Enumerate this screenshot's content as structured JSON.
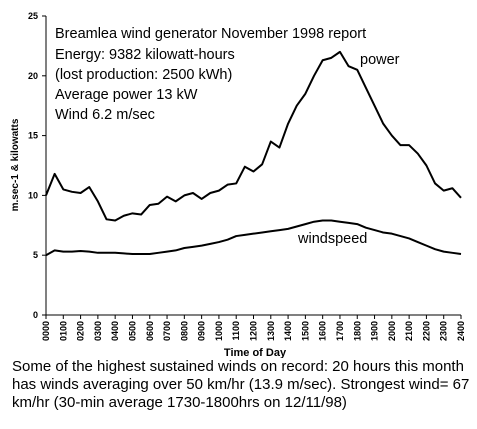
{
  "chart_data": {
    "type": "line",
    "title": "Breamlea wind generator November 1998 report",
    "annotations": [
      "Energy: 9382 kilowatt-hours",
      "(lost production: 2500 kWh)",
      "Average power 13 kW",
      "Wind 6.2 m/sec"
    ],
    "x_label": "Time of Day",
    "y_label": "m.sec-1 & kilowatts",
    "caption": "Some of the highest sustained winds on record: 20 hours this month has winds averaging over 50 km/hr (13.9 m/sec). Strongest wind= 67 km/hr (30-min average 1730-1800hrs on 12/11/98)",
    "x": [
      0,
      0.5,
      1,
      1.5,
      2,
      2.5,
      3,
      3.5,
      4,
      4.5,
      5,
      5.5,
      6,
      6.5,
      7,
      7.5,
      8,
      8.5,
      9,
      9.5,
      10,
      10.5,
      11,
      11.5,
      12,
      12.5,
      13,
      13.5,
      14,
      14.5,
      15,
      15.5,
      16,
      16.5,
      17,
      17.5,
      18,
      18.5,
      19,
      19.5,
      20,
      20.5,
      21,
      21.5,
      22,
      22.5,
      23,
      23.5,
      24
    ],
    "series": [
      {
        "name": "power",
        "color": "#000000",
        "values": [
          10,
          11.8,
          10.5,
          10.3,
          10.2,
          10.7,
          9.5,
          8,
          7.9,
          8.3,
          8.5,
          8.4,
          9.2,
          9.3,
          9.9,
          9.5,
          10,
          10.2,
          9.7,
          10.2,
          10.4,
          10.9,
          11,
          12.4,
          12,
          12.6,
          14.5,
          14,
          16,
          17.5,
          18.5,
          20,
          21.3,
          21.5,
          22,
          20.8,
          20.5,
          19,
          17.5,
          16,
          15,
          14.2,
          14.2,
          13.5,
          12.5,
          11,
          10.4,
          10.6,
          9.8
        ]
      },
      {
        "name": "windspeed",
        "color": "#000000",
        "values": [
          5,
          5.4,
          5.3,
          5.3,
          5.35,
          5.3,
          5.2,
          5.2,
          5.2,
          5.15,
          5.1,
          5.1,
          5.1,
          5.2,
          5.3,
          5.4,
          5.6,
          5.7,
          5.8,
          5.95,
          6.1,
          6.3,
          6.6,
          6.7,
          6.8,
          6.9,
          7,
          7.1,
          7.2,
          7.4,
          7.6,
          7.8,
          7.9,
          7.9,
          7.8,
          7.7,
          7.6,
          7.3,
          7.1,
          6.9,
          6.8,
          6.6,
          6.4,
          6.1,
          5.8,
          5.5,
          5.3,
          5.2,
          5.1
        ]
      }
    ],
    "xlim": [
      0,
      24
    ],
    "xticks": [
      {
        "value": 0,
        "label": "0000"
      },
      {
        "value": 1,
        "label": "0100"
      },
      {
        "value": 2,
        "label": "0200"
      },
      {
        "value": 3,
        "label": "0300"
      },
      {
        "value": 4,
        "label": "0400"
      },
      {
        "value": 5,
        "label": "0500"
      },
      {
        "value": 6,
        "label": "0600"
      },
      {
        "value": 7,
        "label": "0700"
      },
      {
        "value": 8,
        "label": "0800"
      },
      {
        "value": 9,
        "label": "0900"
      },
      {
        "value": 10,
        "label": "1000"
      },
      {
        "value": 11,
        "label": "1100"
      },
      {
        "value": 12,
        "label": "1200"
      },
      {
        "value": 13,
        "label": "1300"
      },
      {
        "value": 14,
        "label": "1400"
      },
      {
        "value": 15,
        "label": "1500"
      },
      {
        "value": 16,
        "label": "1600"
      },
      {
        "value": 17,
        "label": "1700"
      },
      {
        "value": 18,
        "label": "1800"
      },
      {
        "value": 19,
        "label": "1900"
      },
      {
        "value": 20,
        "label": "2000"
      },
      {
        "value": 21,
        "label": "2100"
      },
      {
        "value": 22,
        "label": "2200"
      },
      {
        "value": 23,
        "label": "2300"
      },
      {
        "value": 24,
        "label": "2400"
      }
    ],
    "ylim": [
      0,
      25
    ],
    "yticks": [
      0,
      5,
      10,
      15,
      20,
      25
    ],
    "grid": false
  }
}
